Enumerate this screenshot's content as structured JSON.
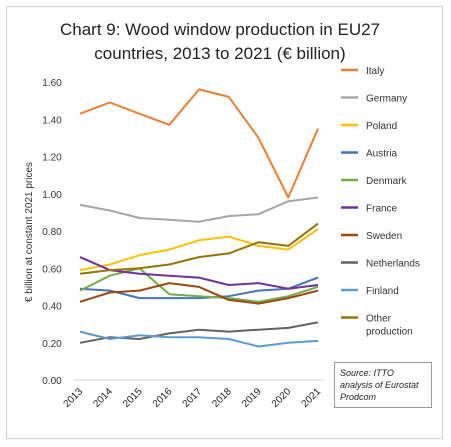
{
  "chart_data": {
    "type": "line",
    "title_line1": "Chart 9: Wood window production in EU27",
    "title_line2": "countries, 2013 to 2021 (€ billion)",
    "ylabel": "€ billion at constant 2021 prices",
    "xlabel": "",
    "x": [
      "2013",
      "2014",
      "2015",
      "2016",
      "2017",
      "2018",
      "2019",
      "2020",
      "2021"
    ],
    "ylim": [
      0,
      1.6
    ],
    "yticks": [
      "0.00",
      "0.20",
      "0.40",
      "0.60",
      "0.80",
      "1.00",
      "1.20",
      "1.40",
      "1.60"
    ],
    "grid": false,
    "legend_position": "right",
    "source": "Source: ITTO analysis of Eurostat Prodcom",
    "series": [
      {
        "name": "Italy",
        "color": "#ed7d31",
        "values": [
          1.43,
          1.49,
          1.43,
          1.37,
          1.56,
          1.52,
          1.3,
          0.98,
          1.35
        ]
      },
      {
        "name": "Germany",
        "color": "#a5a5a5",
        "values": [
          0.94,
          0.91,
          0.87,
          0.86,
          0.85,
          0.88,
          0.89,
          0.96,
          0.98
        ]
      },
      {
        "name": "Poland",
        "color": "#ffc000",
        "values": [
          0.59,
          0.62,
          0.67,
          0.7,
          0.75,
          0.77,
          0.72,
          0.7,
          0.81
        ]
      },
      {
        "name": "Austria",
        "color": "#4472c4",
        "values": [
          0.49,
          0.48,
          0.44,
          0.44,
          0.44,
          0.45,
          0.48,
          0.49,
          0.55
        ]
      },
      {
        "name": "Denmark",
        "color": "#70ad47",
        "values": [
          0.48,
          0.56,
          0.6,
          0.46,
          0.45,
          0.44,
          0.42,
          0.45,
          0.5
        ]
      },
      {
        "name": "France",
        "color": "#7030a0",
        "values": [
          0.66,
          0.59,
          0.57,
          0.56,
          0.55,
          0.51,
          0.52,
          0.49,
          0.51
        ]
      },
      {
        "name": "Sweden",
        "color": "#9e480e",
        "values": [
          0.42,
          0.47,
          0.48,
          0.52,
          0.5,
          0.43,
          0.41,
          0.44,
          0.48
        ]
      },
      {
        "name": "Netherlands",
        "color": "#636363",
        "values": [
          0.2,
          0.23,
          0.22,
          0.25,
          0.27,
          0.26,
          0.27,
          0.28,
          0.31
        ]
      },
      {
        "name": "Finland",
        "color": "#5b9bd5",
        "values": [
          0.26,
          0.22,
          0.24,
          0.23,
          0.23,
          0.22,
          0.18,
          0.2,
          0.21
        ]
      },
      {
        "name": "Other production",
        "color": "#997300",
        "values": [
          0.57,
          0.59,
          0.6,
          0.62,
          0.66,
          0.68,
          0.74,
          0.72,
          0.84
        ]
      }
    ]
  }
}
